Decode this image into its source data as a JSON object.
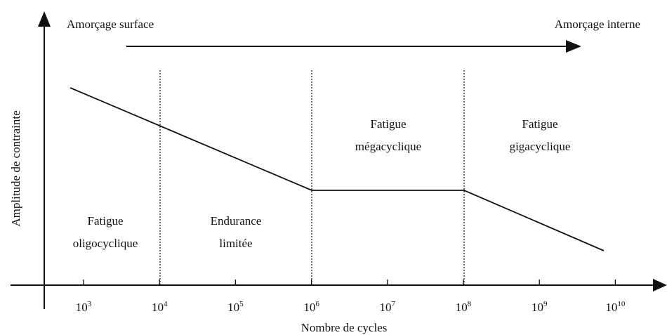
{
  "top_arrow": {
    "left_label": "Amorçage surface",
    "right_label": "Amorçage interne"
  },
  "y_axis": {
    "label": "Amplitude de contrainte"
  },
  "x_axis": {
    "label": "Nombre de cycles",
    "ticks": [
      {
        "base": "10",
        "exponent": "3"
      },
      {
        "base": "10",
        "exponent": "4"
      },
      {
        "base": "10",
        "exponent": "5"
      },
      {
        "base": "10",
        "exponent": "6"
      },
      {
        "base": "10",
        "exponent": "7"
      },
      {
        "base": "10",
        "exponent": "8"
      },
      {
        "base": "10",
        "exponent": "9"
      },
      {
        "base": "10",
        "exponent": "10"
      }
    ]
  },
  "regions": [
    {
      "lines": [
        "Fatigue",
        "oligocyclique"
      ]
    },
    {
      "lines": [
        "Endurance",
        "limitée"
      ]
    },
    {
      "lines": [
        "Fatigue",
        "mégacyclique"
      ]
    },
    {
      "lines": [
        "Fatigue",
        "gigacyclique"
      ]
    }
  ]
}
